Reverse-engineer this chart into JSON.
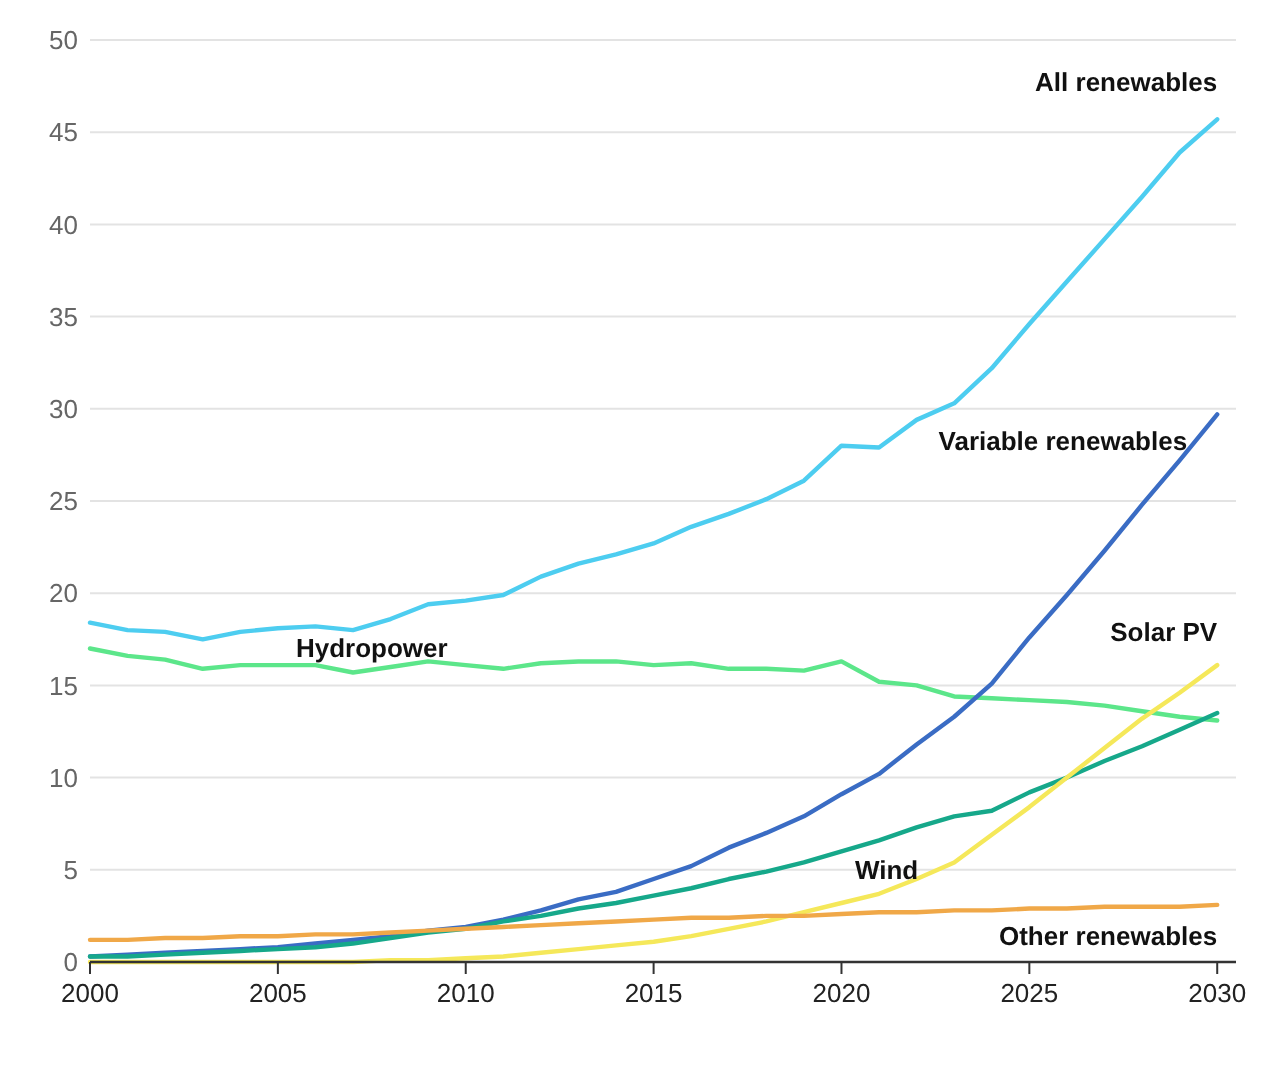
{
  "chart_data": {
    "type": "line",
    "x": [
      2000,
      2001,
      2002,
      2003,
      2004,
      2005,
      2006,
      2007,
      2008,
      2009,
      2010,
      2011,
      2012,
      2013,
      2014,
      2015,
      2016,
      2017,
      2018,
      2019,
      2020,
      2021,
      2022,
      2023,
      2024,
      2025,
      2026,
      2027,
      2028,
      2029,
      2030
    ],
    "series": [
      {
        "name": "All renewables",
        "color": "#4dcdf0",
        "values": [
          18.4,
          18.0,
          17.9,
          17.5,
          17.9,
          18.1,
          18.2,
          18.0,
          18.6,
          19.4,
          19.6,
          19.9,
          20.9,
          21.6,
          22.1,
          22.7,
          23.6,
          24.3,
          25.1,
          26.1,
          28.0,
          27.9,
          29.4,
          30.3,
          32.2,
          34.6,
          36.9,
          39.2,
          41.5,
          43.9,
          45.7
        ]
      },
      {
        "name": "Hydropower",
        "color": "#5ce68a",
        "values": [
          17.0,
          16.6,
          16.4,
          15.9,
          16.1,
          16.1,
          16.1,
          15.7,
          16.0,
          16.3,
          16.1,
          15.9,
          16.2,
          16.3,
          16.3,
          16.1,
          16.2,
          15.9,
          15.9,
          15.8,
          16.3,
          15.2,
          15.0,
          14.4,
          14.3,
          14.2,
          14.1,
          13.9,
          13.6,
          13.3,
          13.1
        ]
      },
      {
        "name": "Variable renewables",
        "color": "#3a6cc4",
        "values": [
          0.3,
          0.4,
          0.5,
          0.6,
          0.7,
          0.8,
          1.0,
          1.2,
          1.4,
          1.7,
          1.9,
          2.3,
          2.8,
          3.4,
          3.8,
          4.5,
          5.2,
          6.2,
          7.0,
          7.9,
          9.1,
          10.2,
          11.8,
          13.3,
          15.1,
          17.6,
          19.9,
          22.3,
          24.8,
          27.2,
          29.7
        ]
      },
      {
        "name": "Wind",
        "color": "#16a88a",
        "values": [
          0.3,
          0.3,
          0.4,
          0.5,
          0.6,
          0.7,
          0.8,
          1.0,
          1.3,
          1.6,
          1.8,
          2.2,
          2.5,
          2.9,
          3.2,
          3.6,
          4.0,
          4.5,
          4.9,
          5.4,
          6.0,
          6.6,
          7.3,
          7.9,
          8.2,
          9.2,
          10.0,
          10.9,
          11.7,
          12.6,
          13.5
        ]
      },
      {
        "name": "Solar PV",
        "color": "#f5e85a",
        "values": [
          0,
          0,
          0,
          0,
          0,
          0,
          0,
          0,
          0.1,
          0.1,
          0.2,
          0.3,
          0.5,
          0.7,
          0.9,
          1.1,
          1.4,
          1.8,
          2.2,
          2.7,
          3.2,
          3.7,
          4.5,
          5.4,
          6.9,
          8.4,
          10.0,
          11.6,
          13.2,
          14.6,
          16.1
        ]
      },
      {
        "name": "Other renewables",
        "color": "#f0a848",
        "values": [
          1.2,
          1.2,
          1.3,
          1.3,
          1.4,
          1.4,
          1.5,
          1.5,
          1.6,
          1.7,
          1.8,
          1.9,
          2.0,
          2.1,
          2.2,
          2.3,
          2.4,
          2.4,
          2.5,
          2.5,
          2.6,
          2.7,
          2.7,
          2.8,
          2.8,
          2.9,
          2.9,
          3.0,
          3.0,
          3.0,
          3.1
        ]
      }
    ],
    "xlim": [
      2000,
      2030.5
    ],
    "xticks": [
      2000,
      2005,
      2010,
      2015,
      2020,
      2025,
      2030
    ],
    "ylim": [
      0,
      50
    ],
    "yticks": [
      0,
      5,
      10,
      15,
      20,
      25,
      30,
      35,
      40,
      45,
      50
    ],
    "grid": "y",
    "legend": false,
    "marker": "none",
    "line_style": "solid"
  }
}
